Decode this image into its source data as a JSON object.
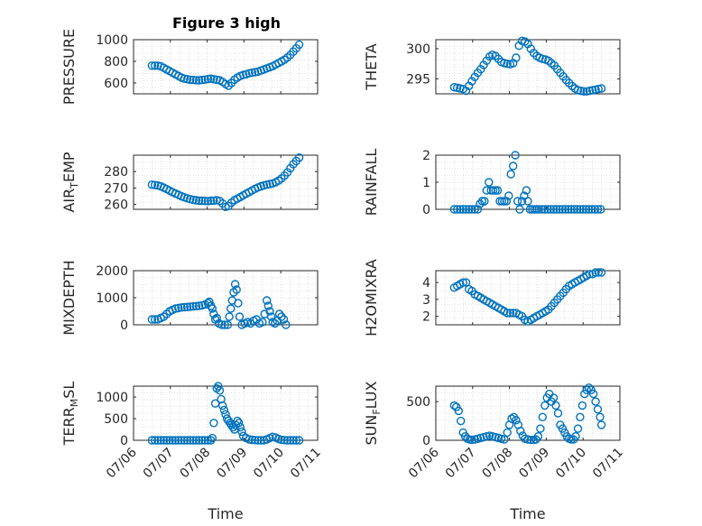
{
  "figure": {
    "title": "Figure 3 high",
    "marker_color": "#0072BD"
  },
  "chart_data": [
    {
      "type": "scatter",
      "ylabel": "PRESSURE",
      "title": "Figure 3 high",
      "xlabel": "",
      "xlim": [
        0,
        5
      ],
      "ylim": [
        500,
        1000
      ],
      "yticks": [
        600,
        800,
        1000
      ],
      "xticklabels": [],
      "grid": true,
      "x": [
        0.5,
        0.58,
        0.66,
        0.74,
        0.82,
        0.9,
        0.98,
        1.06,
        1.14,
        1.22,
        1.3,
        1.38,
        1.46,
        1.54,
        1.62,
        1.7,
        1.78,
        1.86,
        1.94,
        2.02,
        2.1,
        2.18,
        2.26,
        2.34,
        2.42,
        2.5,
        2.58,
        2.66,
        2.74,
        2.82,
        2.9,
        2.98,
        3.06,
        3.14,
        3.22,
        3.3,
        3.38,
        3.46,
        3.54,
        3.62,
        3.7,
        3.78,
        3.86,
        3.94,
        4.02,
        4.1,
        4.18,
        4.26,
        4.34,
        4.42,
        4.5
      ],
      "values": [
        760,
        760,
        760,
        755,
        740,
        725,
        710,
        695,
        680,
        665,
        650,
        640,
        635,
        630,
        628,
        626,
        625,
        628,
        632,
        636,
        640,
        635,
        630,
        625,
        610,
        590,
        575,
        600,
        630,
        650,
        665,
        675,
        680,
        690,
        695,
        700,
        705,
        715,
        725,
        735,
        745,
        755,
        770,
        785,
        800,
        815,
        835,
        860,
        890,
        920,
        955
      ]
    },
    {
      "type": "scatter",
      "ylabel": "THETA",
      "xlabel": "",
      "xlim": [
        0,
        5
      ],
      "ylim": [
        292.5,
        301.5
      ],
      "yticks": [
        295,
        300
      ],
      "xticklabels": [],
      "grid": true,
      "x": [
        0.5,
        0.58,
        0.66,
        0.74,
        0.82,
        0.9,
        0.98,
        1.06,
        1.14,
        1.22,
        1.3,
        1.38,
        1.46,
        1.54,
        1.62,
        1.7,
        1.78,
        1.86,
        1.94,
        2.02,
        2.1,
        2.18,
        2.26,
        2.34,
        2.42,
        2.5,
        2.58,
        2.66,
        2.74,
        2.82,
        2.9,
        2.98,
        3.06,
        3.14,
        3.22,
        3.3,
        3.38,
        3.46,
        3.54,
        3.62,
        3.7,
        3.78,
        3.86,
        3.94,
        4.02,
        4.1,
        4.18,
        4.26,
        4.34,
        4.42,
        4.5
      ],
      "values": [
        293.6,
        293.5,
        293.4,
        293.3,
        293.0,
        293.8,
        294.6,
        295.3,
        296.0,
        296.6,
        297.3,
        298.0,
        298.7,
        299.0,
        298.8,
        298.3,
        297.8,
        297.6,
        297.5,
        297.4,
        297.6,
        298.5,
        300.5,
        301.3,
        301.2,
        300.8,
        300.0,
        299.3,
        298.8,
        298.5,
        298.3,
        298.2,
        298.0,
        297.6,
        297.2,
        296.6,
        296.0,
        295.4,
        294.8,
        294.3,
        293.8,
        293.4,
        293.1,
        293.0,
        292.9,
        292.9,
        293.0,
        293.1,
        293.2,
        293.3,
        293.4
      ]
    },
    {
      "type": "scatter",
      "ylabel": "AIR_TEMP",
      "xlabel": "",
      "xlim": [
        0,
        5
      ],
      "ylim": [
        257,
        290
      ],
      "yticks": [
        260,
        270,
        280
      ],
      "xticklabels": [],
      "grid": true,
      "x": [
        0.5,
        0.58,
        0.66,
        0.74,
        0.82,
        0.9,
        0.98,
        1.06,
        1.14,
        1.22,
        1.3,
        1.38,
        1.46,
        1.54,
        1.62,
        1.7,
        1.78,
        1.86,
        1.94,
        2.02,
        2.1,
        2.18,
        2.26,
        2.34,
        2.42,
        2.5,
        2.58,
        2.66,
        2.74,
        2.82,
        2.9,
        2.98,
        3.06,
        3.14,
        3.22,
        3.3,
        3.38,
        3.46,
        3.54,
        3.62,
        3.7,
        3.78,
        3.86,
        3.94,
        4.02,
        4.1,
        4.18,
        4.26,
        4.34,
        4.42,
        4.5
      ],
      "values": [
        272,
        271.8,
        271.5,
        271,
        270.2,
        269.3,
        268.4,
        267.5,
        266.6,
        265.8,
        265,
        264.3,
        263.7,
        263.2,
        262.8,
        262.5,
        262.3,
        262.2,
        262.1,
        262,
        262.2,
        262.3,
        262.6,
        262.1,
        260.5,
        258.5,
        259,
        261,
        262.5,
        263.5,
        264.5,
        265.5,
        266.5,
        267.5,
        268.5,
        269.5,
        270.3,
        271,
        271.6,
        272,
        272.4,
        272.8,
        273.5,
        274.5,
        275.8,
        277.5,
        279.5,
        282,
        284.5,
        286.5,
        288.5
      ]
    },
    {
      "type": "scatter",
      "ylabel": "RAINFALL",
      "xlabel": "",
      "xlim": [
        0,
        5
      ],
      "ylim": [
        0,
        2
      ],
      "yticks": [
        0,
        1,
        2
      ],
      "xticklabels": [],
      "grid": true,
      "x": [
        0.5,
        0.58,
        0.66,
        0.74,
        0.82,
        0.9,
        0.98,
        1.06,
        1.14,
        1.2,
        1.26,
        1.32,
        1.38,
        1.44,
        1.5,
        1.56,
        1.62,
        1.68,
        1.74,
        1.8,
        1.86,
        1.92,
        1.98,
        2.04,
        2.1,
        2.16,
        2.22,
        2.28,
        2.34,
        2.4,
        2.46,
        2.5,
        2.56,
        2.62,
        2.68,
        2.74,
        2.8,
        2.88,
        2.96,
        3.04,
        3.12,
        3.2,
        3.28,
        3.36,
        3.44,
        3.52,
        3.6,
        3.68,
        3.76,
        3.84,
        3.92,
        4.0,
        4.08,
        4.16,
        4.24,
        4.32,
        4.4,
        4.48
      ],
      "values": [
        0,
        0,
        0,
        0,
        0,
        0,
        0,
        0,
        0,
        0.2,
        0.3,
        0.3,
        0.7,
        1.0,
        0.7,
        0.7,
        0.7,
        0.7,
        0.3,
        0.3,
        0.3,
        0.3,
        0.5,
        1.3,
        1.6,
        2.0,
        0.3,
        0,
        0.3,
        0.5,
        0.7,
        0.3,
        0,
        0,
        0,
        0,
        0,
        0,
        0,
        0,
        0,
        0,
        0,
        0,
        0,
        0,
        0,
        0,
        0,
        0,
        0,
        0,
        0,
        0,
        0,
        0,
        0,
        0
      ]
    },
    {
      "type": "scatter",
      "ylabel": "MIXDEPTH",
      "xlabel": "",
      "xlim": [
        0,
        5
      ],
      "ylim": [
        0,
        2000
      ],
      "yticks": [
        0,
        1000,
        2000
      ],
      "xticklabels": [],
      "grid": true,
      "x": [
        0.5,
        0.58,
        0.66,
        0.74,
        0.82,
        0.9,
        0.98,
        1.06,
        1.14,
        1.22,
        1.3,
        1.38,
        1.46,
        1.54,
        1.62,
        1.7,
        1.78,
        1.86,
        1.94,
        2.02,
        2.06,
        2.1,
        2.14,
        2.18,
        2.22,
        2.26,
        2.32,
        2.4,
        2.48,
        2.56,
        2.6,
        2.64,
        2.68,
        2.72,
        2.76,
        2.8,
        2.84,
        2.88,
        2.94,
        3.02,
        3.1,
        3.18,
        3.26,
        3.34,
        3.42,
        3.5,
        3.56,
        3.62,
        3.66,
        3.7,
        3.74,
        3.78,
        3.84,
        3.9,
        3.96,
        4.02,
        4.08,
        4.14
      ],
      "values": [
        200,
        200,
        200,
        250,
        300,
        400,
        500,
        550,
        600,
        620,
        640,
        650,
        660,
        670,
        680,
        690,
        700,
        720,
        750,
        800,
        850,
        700,
        600,
        400,
        200,
        250,
        50,
        0,
        0,
        0,
        300,
        600,
        900,
        1200,
        1500,
        1300,
        800,
        300,
        0,
        50,
        100,
        50,
        150,
        200,
        50,
        100,
        400,
        900,
        700,
        500,
        300,
        100,
        50,
        150,
        400,
        300,
        200,
        0
      ]
    },
    {
      "type": "scatter",
      "ylabel": "H2OMIXRA",
      "xlabel": "",
      "xlim": [
        0,
        5
      ],
      "ylim": [
        1.5,
        4.7
      ],
      "yticks": [
        2,
        3,
        4
      ],
      "xticklabels": [],
      "grid": true,
      "x": [
        0.5,
        0.58,
        0.66,
        0.74,
        0.82,
        0.9,
        0.98,
        1.06,
        1.14,
        1.22,
        1.3,
        1.38,
        1.46,
        1.54,
        1.62,
        1.7,
        1.78,
        1.86,
        1.94,
        2.02,
        2.1,
        2.18,
        2.26,
        2.34,
        2.42,
        2.5,
        2.58,
        2.66,
        2.74,
        2.82,
        2.9,
        2.98,
        3.06,
        3.14,
        3.22,
        3.3,
        3.38,
        3.46,
        3.54,
        3.62,
        3.7,
        3.78,
        3.86,
        3.94,
        4.02,
        4.1,
        4.18,
        4.26,
        4.34,
        4.42,
        4.5
      ],
      "values": [
        3.7,
        3.8,
        3.9,
        4.0,
        4.0,
        3.6,
        3.5,
        3.3,
        3.2,
        3.1,
        3.0,
        2.9,
        2.8,
        2.7,
        2.6,
        2.5,
        2.4,
        2.3,
        2.2,
        2.2,
        2.2,
        2.2,
        2.1,
        2.0,
        1.8,
        1.7,
        1.8,
        1.9,
        2.0,
        2.1,
        2.2,
        2.3,
        2.4,
        2.6,
        2.8,
        3.0,
        3.2,
        3.4,
        3.6,
        3.8,
        3.9,
        4.0,
        4.1,
        4.2,
        4.3,
        4.4,
        4.5,
        4.5,
        4.6,
        4.6,
        4.6
      ]
    },
    {
      "type": "scatter",
      "ylabel": "TERR_MSL",
      "xlabel": "Time",
      "xlim": [
        0,
        5
      ],
      "ylim": [
        0,
        1250
      ],
      "yticks": [
        0,
        500,
        1000
      ],
      "xticklabels": [
        "07/06",
        "07/07",
        "07/08",
        "07/09",
        "07/10",
        "07/11"
      ],
      "grid": true,
      "x": [
        0.5,
        0.58,
        0.66,
        0.74,
        0.82,
        0.9,
        0.98,
        1.06,
        1.14,
        1.22,
        1.3,
        1.38,
        1.46,
        1.54,
        1.62,
        1.7,
        1.78,
        1.86,
        1.94,
        2.02,
        2.1,
        2.14,
        2.18,
        2.22,
        2.26,
        2.3,
        2.34,
        2.38,
        2.42,
        2.46,
        2.5,
        2.54,
        2.58,
        2.62,
        2.66,
        2.7,
        2.74,
        2.78,
        2.82,
        2.86,
        2.9,
        2.94,
        2.98,
        3.06,
        3.14,
        3.22,
        3.3,
        3.38,
        3.46,
        3.54,
        3.62,
        3.7,
        3.78,
        3.86,
        3.94,
        4.02,
        4.1,
        4.18,
        4.26,
        4.34,
        4.42,
        4.5
      ],
      "values": [
        0,
        0,
        0,
        0,
        0,
        0,
        0,
        0,
        0,
        0,
        0,
        0,
        0,
        0,
        0,
        0,
        0,
        0,
        0,
        0,
        0,
        50,
        400,
        850,
        1200,
        1250,
        1150,
        950,
        800,
        700,
        600,
        500,
        450,
        400,
        350,
        300,
        250,
        350,
        450,
        400,
        300,
        200,
        100,
        50,
        20,
        10,
        5,
        0,
        0,
        0,
        20,
        50,
        80,
        60,
        30,
        10,
        5,
        0,
        0,
        0,
        0,
        0
      ]
    },
    {
      "type": "scatter",
      "ylabel": "SUN_FLUX",
      "xlabel": "Time",
      "xlim": [
        0,
        5
      ],
      "ylim": [
        0,
        700
      ],
      "yticks": [
        0,
        500
      ],
      "xticklabels": [
        "07/06",
        "07/07",
        "07/08",
        "07/09",
        "07/10",
        "07/11"
      ],
      "grid": true,
      "x": [
        0.5,
        0.56,
        0.62,
        0.68,
        0.74,
        0.8,
        0.86,
        0.92,
        0.98,
        1.06,
        1.14,
        1.22,
        1.3,
        1.38,
        1.46,
        1.54,
        1.62,
        1.7,
        1.78,
        1.86,
        1.94,
        2.0,
        2.06,
        2.12,
        2.18,
        2.24,
        2.3,
        2.36,
        2.42,
        2.5,
        2.58,
        2.66,
        2.72,
        2.78,
        2.84,
        2.9,
        2.96,
        3.02,
        3.08,
        3.14,
        3.2,
        3.26,
        3.32,
        3.38,
        3.44,
        3.5,
        3.56,
        3.62,
        3.68,
        3.74,
        3.8,
        3.86,
        3.92,
        3.98,
        4.04,
        4.1,
        4.16,
        4.22,
        4.28,
        4.34,
        4.4,
        4.46,
        4.5
      ],
      "values": [
        450,
        430,
        380,
        250,
        100,
        50,
        20,
        10,
        5,
        10,
        20,
        30,
        40,
        50,
        60,
        50,
        40,
        30,
        20,
        10,
        100,
        200,
        280,
        300,
        260,
        200,
        120,
        60,
        20,
        10,
        5,
        5,
        10,
        50,
        150,
        300,
        450,
        550,
        600,
        500,
        550,
        450,
        350,
        200,
        150,
        100,
        50,
        20,
        10,
        10,
        50,
        150,
        300,
        450,
        600,
        650,
        680,
        650,
        600,
        500,
        400,
        300,
        200
      ]
    }
  ]
}
